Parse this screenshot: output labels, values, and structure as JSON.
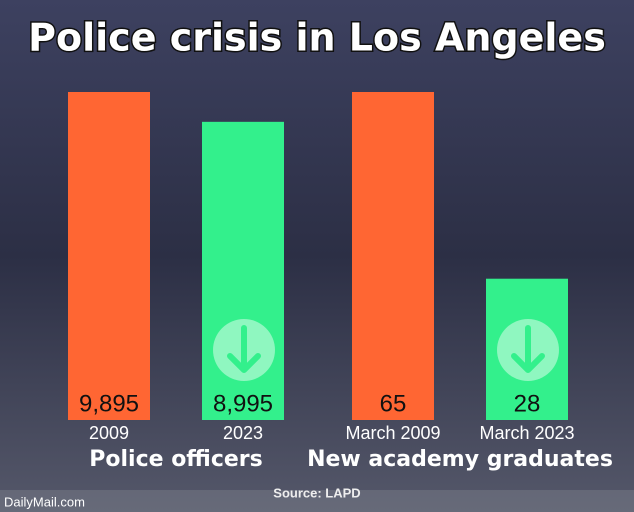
{
  "title": "Police crisis in Los Angeles",
  "source": "Source: LAPD",
  "credit": "DailyMail.com",
  "chart_data": [
    {
      "type": "bar",
      "xlabel": "Police officers",
      "categories": [
        "2009",
        "2023"
      ],
      "values": [
        9895,
        8995
      ],
      "value_labels": [
        "9,895",
        "8,995"
      ],
      "colors": [
        "#ff6633",
        "#33f08c"
      ]
    },
    {
      "type": "bar",
      "xlabel": "New academy graduates",
      "categories": [
        "March 2009",
        "March 2023"
      ],
      "values": [
        65,
        28
      ],
      "value_labels": [
        "65",
        "28"
      ],
      "colors": [
        "#ff6633",
        "#33f08c"
      ]
    }
  ]
}
